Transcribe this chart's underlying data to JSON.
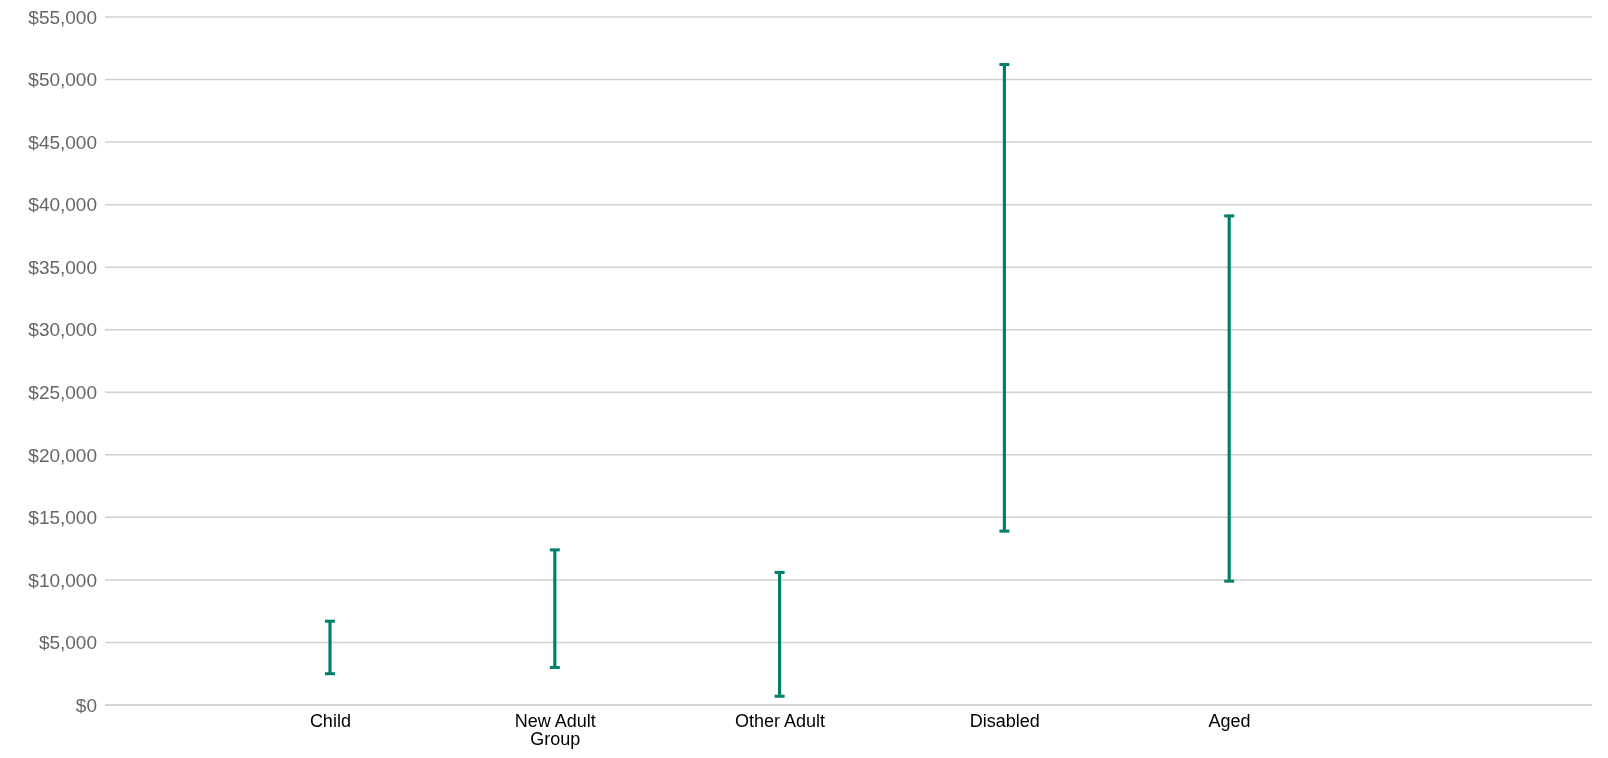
{
  "chart_data": {
    "type": "bar",
    "categories": [
      "Child",
      "New Adult Group",
      "Other Adult",
      "Disabled",
      "Aged"
    ],
    "base": [
      2500,
      3000,
      700,
      13900,
      9900
    ],
    "values": [
      4200,
      9400,
      9900,
      37300,
      29200
    ],
    "color": "#00806a",
    "ylim": [
      0,
      55000
    ],
    "yticks": [
      {
        "value": 0,
        "label": "$0"
      },
      {
        "value": 5000,
        "label": "$5,000"
      },
      {
        "value": 10000,
        "label": "$10,000"
      },
      {
        "value": 15000,
        "label": "$15,000"
      },
      {
        "value": 20000,
        "label": "$20,000"
      },
      {
        "value": 25000,
        "label": "$25,000"
      },
      {
        "value": 30000,
        "label": "$30,000"
      },
      {
        "value": 35000,
        "label": "$35,000"
      },
      {
        "value": 40000,
        "label": "$40,000"
      },
      {
        "value": 45000,
        "label": "$45,000"
      },
      {
        "value": 50000,
        "label": "$50,000"
      },
      {
        "value": 55000,
        "label": "$55,000"
      }
    ],
    "grid": "y"
  }
}
